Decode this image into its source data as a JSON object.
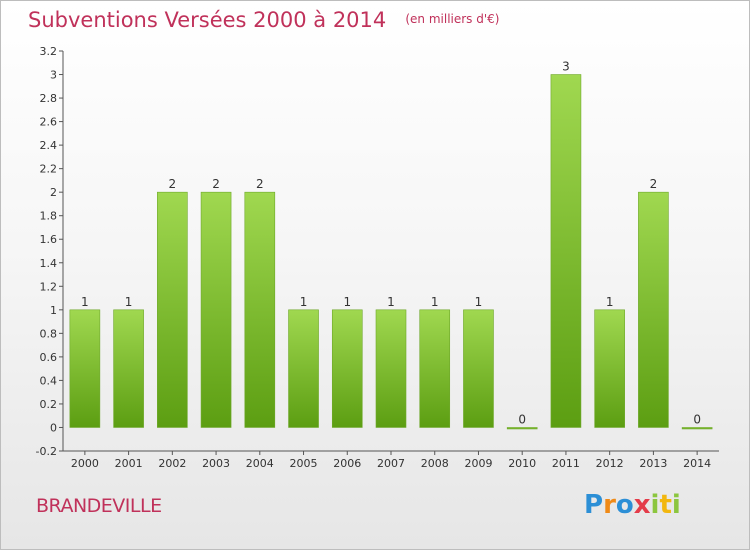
{
  "header": {
    "title": "Subventions Versées 2000 à 2014",
    "subtitle": "(en milliers d'€)"
  },
  "footer": {
    "commune": "BRANDEVILLE",
    "brand_letters": [
      "P",
      "r",
      "o",
      "x",
      "i",
      "t",
      "i"
    ]
  },
  "colors": {
    "title": "#c0315a",
    "bar_top": "#a0d850",
    "bar_bottom": "#5c9e12",
    "brand": [
      "#2c8fd6",
      "#ef8a17",
      "#2c8fd6",
      "#e43c4a",
      "#8cc63f",
      "#f2b70f",
      "#8cc63f"
    ]
  },
  "chart_data": {
    "type": "bar",
    "categories": [
      "2000",
      "2001",
      "2002",
      "2003",
      "2004",
      "2005",
      "2006",
      "2007",
      "2008",
      "2009",
      "2010",
      "2011",
      "2012",
      "2013",
      "2014"
    ],
    "values": [
      1,
      1,
      2,
      2,
      2,
      1,
      1,
      1,
      1,
      1,
      0,
      3,
      1,
      2,
      0
    ],
    "data_labels": [
      "1",
      "1",
      "2",
      "2",
      "2",
      "1",
      "1",
      "1",
      "1",
      "1",
      "0",
      "3",
      "1",
      "2",
      "0"
    ],
    "y_ticks": [
      -0.2,
      0,
      0.2,
      0.4,
      0.6,
      0.8,
      1,
      1.2,
      1.4,
      1.6,
      1.8,
      2,
      2.2,
      2.4,
      2.6,
      2.8,
      3,
      3.2
    ],
    "y_tick_labels": [
      "-0.2",
      "0",
      "0.2",
      "0.4",
      "0.6",
      "0.8",
      "1",
      "1.2",
      "1.4",
      "1.6",
      "1.8",
      "2",
      "2.2",
      "2.4",
      "2.6",
      "2.8",
      "3",
      "3.2"
    ],
    "ylim": [
      -0.2,
      3.2
    ],
    "grid": false,
    "legend": "none"
  }
}
